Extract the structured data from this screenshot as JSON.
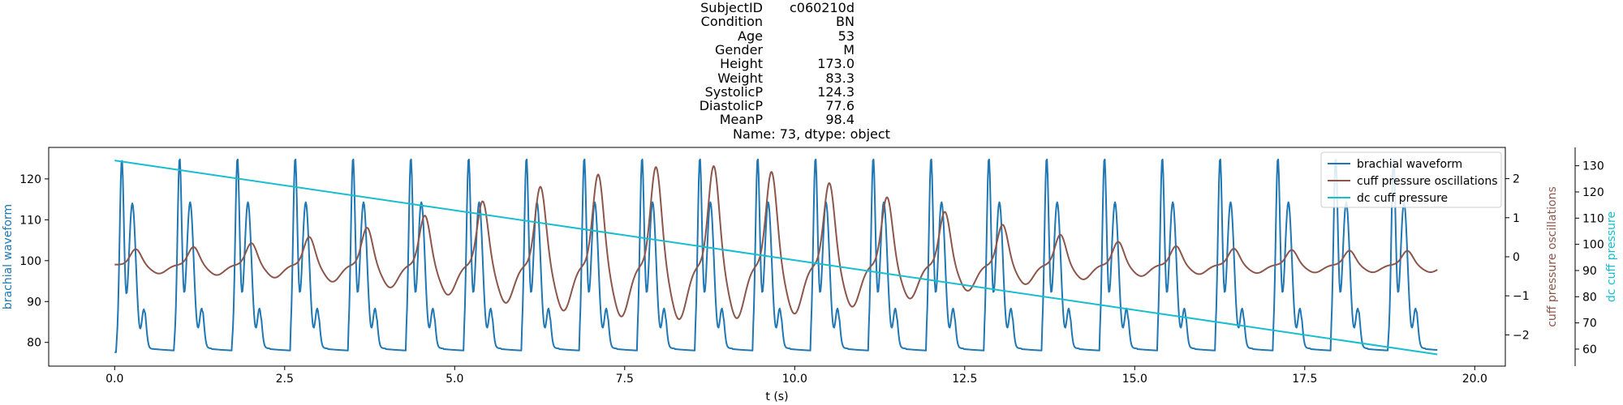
{
  "title": {
    "rows": [
      {
        "key": "SubjectID",
        "value": "c060210d"
      },
      {
        "key": "Condition",
        "value": "BN"
      },
      {
        "key": "Age",
        "value": "53"
      },
      {
        "key": "Gender",
        "value": "M"
      },
      {
        "key": "Height",
        "value": "173.0"
      },
      {
        "key": "Weight",
        "value": "83.3"
      },
      {
        "key": "SystolicP",
        "value": "124.3"
      },
      {
        "key": "DiastolicP",
        "value": "77.6"
      },
      {
        "key": "MeanP",
        "value": "98.4"
      }
    ],
    "footer": "Name: 73, dtype: object"
  },
  "chart_data": {
    "type": "line",
    "xlabel": "t (s)",
    "xlim": [
      -0.97,
      20.45
    ],
    "x_ticks": [
      "0.0",
      "2.5",
      "5.0",
      "7.5",
      "10.0",
      "12.5",
      "15.0",
      "17.5",
      "20.0"
    ],
    "duration_s": 19.45,
    "beat_period_s": 0.85,
    "legend": {
      "location": "upper right",
      "entries": [
        "brachial waveform",
        "cuff pressure oscillations",
        "dc cuff pressure"
      ]
    },
    "grid": false,
    "axes": [
      {
        "name": "brachial waveform",
        "side": "left",
        "color": "#1f77b4",
        "ylim": [
          74.2,
          127.7
        ],
        "ticks": [
          "80",
          "90",
          "100",
          "110",
          "120"
        ]
      },
      {
        "name": "cuff pressure oscillations",
        "side": "right",
        "color": "#8c564b",
        "ylim": [
          -2.8,
          2.8
        ],
        "ticks": [
          "−2",
          "−1",
          "0",
          "1",
          "2"
        ]
      },
      {
        "name": "dc cuff pressure",
        "side": "right-outer",
        "color": "#17becf",
        "ylim": [
          53.5,
          137.0
        ],
        "ticks": [
          "60",
          "70",
          "80",
          "90",
          "100",
          "110",
          "120",
          "130"
        ]
      }
    ],
    "series": [
      {
        "name": "brachial waveform",
        "color": "#1f77b4",
        "systolic": 124.3,
        "diastolic": 77.6,
        "start": 78.0,
        "end": 78.0
      },
      {
        "name": "cuff pressure oscillations",
        "color": "#8c564b",
        "peak_time_s": 8.5,
        "peak_amplitude": 2.2,
        "start": -0.2,
        "end": -0.2
      },
      {
        "name": "dc cuff pressure",
        "color": "#17becf",
        "x": [
          0.0,
          19.45
        ],
        "y": [
          132.0,
          58.0
        ]
      }
    ]
  }
}
